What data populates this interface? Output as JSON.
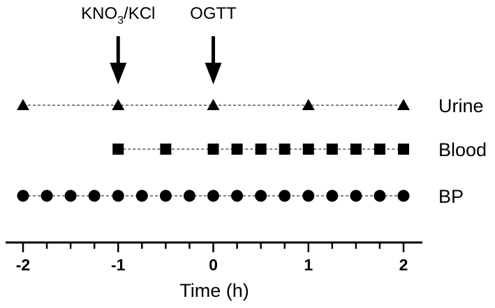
{
  "chart_data": {
    "type": "scatter",
    "title": "",
    "xlabel": "Time (h)",
    "ylabel": "",
    "xlim": [
      -2,
      2
    ],
    "xticks": [
      -2,
      -1.75,
      -1.5,
      -1.25,
      -1,
      -0.75,
      -0.5,
      -0.25,
      0,
      0.25,
      0.5,
      0.75,
      1,
      1.25,
      1.5,
      1.75,
      2
    ],
    "xtick_labels": [
      "-2",
      "-1",
      "0",
      "1",
      "2"
    ],
    "xtick_label_values": [
      -2,
      -1,
      0,
      1,
      2
    ],
    "grid": false,
    "legend": "right",
    "series": [
      {
        "name": "Urine",
        "marker": "triangle",
        "line": "dashed",
        "x": [
          -2,
          -1,
          0,
          1,
          2
        ]
      },
      {
        "name": "Blood",
        "marker": "square",
        "line": "dashed",
        "x": [
          -1,
          -0.5,
          0,
          0.25,
          0.5,
          0.75,
          1,
          1.25,
          1.5,
          1.75,
          2
        ]
      },
      {
        "name": "BP",
        "marker": "circle",
        "line": "dashed",
        "x": [
          -2,
          -1.75,
          -1.5,
          -1.25,
          -1,
          -0.75,
          -0.5,
          -0.25,
          0,
          0.25,
          0.5,
          0.75,
          1,
          1.25,
          1.5,
          1.75,
          2
        ]
      }
    ],
    "annotations": [
      {
        "text_main": "KNO",
        "subscript": "3",
        "text_after": "/KCl",
        "x": -1,
        "marker": "down-arrow"
      },
      {
        "text_main": "OGTT",
        "subscript": "",
        "text_after": "",
        "x": 0,
        "marker": "down-arrow"
      }
    ]
  },
  "colors": {
    "ink": "#000000",
    "connector": "#555555",
    "background": "#ffffff"
  }
}
